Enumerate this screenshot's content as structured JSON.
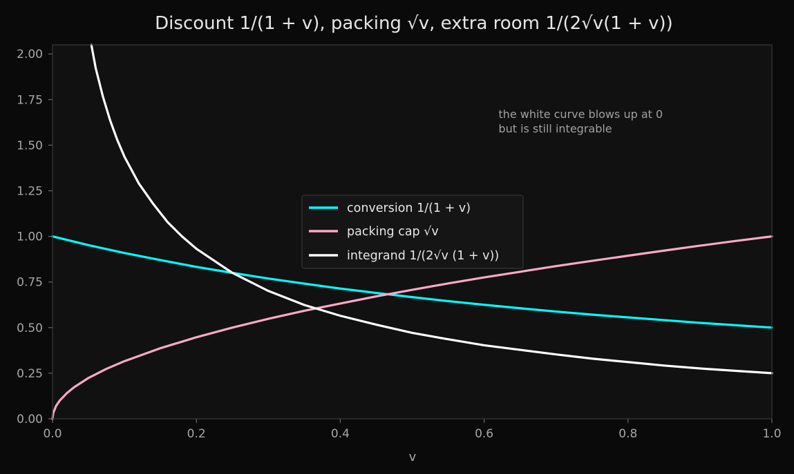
{
  "chart_data": {
    "type": "line",
    "title": "Discount 1/(1 + v), packing √v, extra room 1/(2√v(1 + v))",
    "xlabel": "v",
    "ylabel": "",
    "xlim": [
      0,
      1
    ],
    "ylim": [
      0,
      2.05
    ],
    "x_ticks": [
      0,
      0.2,
      0.4,
      0.6,
      0.8,
      1.0
    ],
    "x_tick_labels": [
      "0.0",
      "0.2",
      "0.4",
      "0.6",
      "0.8",
      "1.0"
    ],
    "y_ticks": [
      0,
      0.25,
      0.5,
      0.75,
      1.0,
      1.25,
      1.5,
      1.75,
      2.0
    ],
    "y_tick_labels": [
      "0.00",
      "0.25",
      "0.50",
      "0.75",
      "1.00",
      "1.25",
      "1.50",
      "1.75",
      "2.00"
    ],
    "grid": false,
    "legend_position": "center",
    "series": [
      {
        "name": "conversion 1/(1 + v)",
        "color": "#00ffff",
        "x": [
          0,
          0.05,
          0.1,
          0.15,
          0.2,
          0.25,
          0.3,
          0.35,
          0.4,
          0.45,
          0.5,
          0.55,
          0.6,
          0.65,
          0.7,
          0.75,
          0.8,
          0.85,
          0.9,
          0.95,
          1.0
        ],
        "y": [
          1.0,
          0.952,
          0.909,
          0.87,
          0.833,
          0.8,
          0.769,
          0.741,
          0.714,
          0.69,
          0.667,
          0.645,
          0.625,
          0.606,
          0.588,
          0.571,
          0.556,
          0.541,
          0.526,
          0.513,
          0.5
        ]
      },
      {
        "name": "packing cap √v",
        "color": "#ffa8c8",
        "x": [
          0,
          0.001,
          0.005,
          0.01,
          0.02,
          0.03,
          0.05,
          0.075,
          0.1,
          0.15,
          0.2,
          0.25,
          0.3,
          0.35,
          0.4,
          0.45,
          0.5,
          0.55,
          0.6,
          0.65,
          0.7,
          0.75,
          0.8,
          0.85,
          0.9,
          0.95,
          1.0
        ],
        "y": [
          0,
          0.032,
          0.071,
          0.1,
          0.141,
          0.173,
          0.224,
          0.274,
          0.316,
          0.387,
          0.447,
          0.5,
          0.548,
          0.592,
          0.632,
          0.671,
          0.707,
          0.742,
          0.775,
          0.806,
          0.837,
          0.866,
          0.894,
          0.922,
          0.949,
          0.975,
          1.0
        ]
      },
      {
        "name": "integrand 1/(2√v (1 + v))",
        "color": "#ffffff",
        "x": [
          0.054,
          0.06,
          0.07,
          0.08,
          0.09,
          0.1,
          0.12,
          0.14,
          0.16,
          0.18,
          0.2,
          0.25,
          0.3,
          0.35,
          0.4,
          0.45,
          0.5,
          0.55,
          0.6,
          0.65,
          0.7,
          0.75,
          0.8,
          0.85,
          0.9,
          0.95,
          1.0
        ],
        "y": [
          2.05,
          1.923,
          1.767,
          1.637,
          1.529,
          1.437,
          1.29,
          1.178,
          1.078,
          1.0,
          0.932,
          0.8,
          0.701,
          0.624,
          0.565,
          0.516,
          0.471,
          0.436,
          0.403,
          0.378,
          0.353,
          0.33,
          0.311,
          0.292,
          0.276,
          0.263,
          0.25
        ]
      }
    ],
    "annotation": {
      "lines": [
        "the white curve blows up at 0",
        "but is still integrable"
      ],
      "x": 0.62,
      "y": 1.65
    }
  },
  "colors": {
    "figure_background": "#0a0a0a",
    "plot_background": "#111111",
    "spine": "#3a3a3a",
    "legend_background": "#151515",
    "legend_border": "#3a3a3a"
  }
}
